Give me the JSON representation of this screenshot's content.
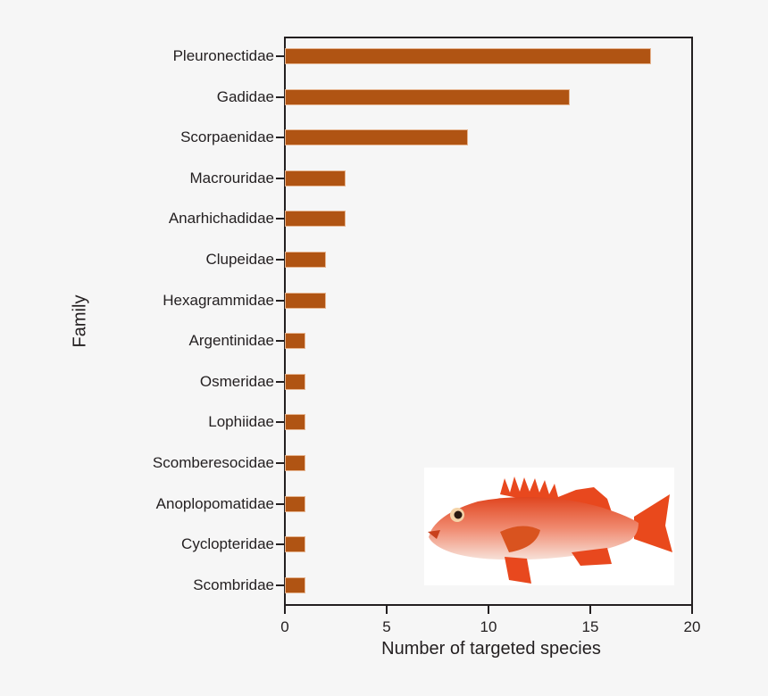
{
  "chart_data": {
    "type": "bar",
    "orientation": "horizontal",
    "title": "",
    "xlabel": "Number of targeted species",
    "ylabel": "Family",
    "xlim": [
      0,
      20
    ],
    "xticks": [
      0,
      5,
      10,
      15,
      20
    ],
    "grid": false,
    "legend": null,
    "bar_color": "#b05413",
    "categories": [
      "Pleuronectidae",
      "Gadidae",
      "Scorpaenidae",
      "Macrouridae",
      "Anarhichadidae",
      "Clupeidae",
      "Hexagrammidae",
      "Argentinidae",
      "Osmeridae",
      "Lophiidae",
      "Scomberesocidae",
      "Anoplopomatidae",
      "Cyclopteridae",
      "Scombridae"
    ],
    "values": [
      18,
      14,
      9,
      3,
      3,
      2,
      2,
      1,
      1,
      1,
      1,
      1,
      1,
      1
    ],
    "annotations": [
      "Inset illustration of a red rockfish (Scorpaenidae)"
    ]
  },
  "axis": {
    "xlabel": "Number of targeted species",
    "ylabel": "Family",
    "xticks": [
      "0",
      "5",
      "10",
      "15",
      "20"
    ]
  },
  "inset": {
    "icon": "rockfish-illustration"
  }
}
